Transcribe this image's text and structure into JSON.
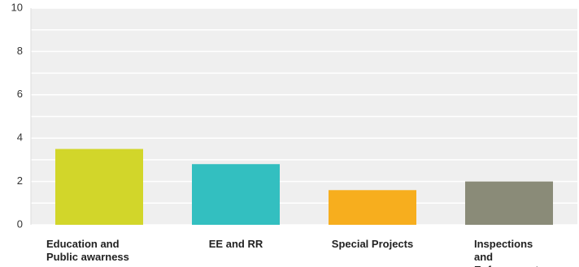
{
  "chart_data": {
    "type": "bar",
    "categories": [
      "Education and Public awarness",
      "EE and RR",
      "Special Projects",
      "Inspections and Enforcement"
    ],
    "values": [
      3.5,
      2.8,
      1.6,
      2.0
    ],
    "colors": [
      "#d2d62a",
      "#33bfc0",
      "#f7ae1e",
      "#8a8b78"
    ],
    "ylim": [
      0,
      10
    ],
    "yticks": [
      0,
      2,
      4,
      6,
      8,
      10
    ],
    "minor_yticks": [
      1,
      3,
      5,
      7,
      9
    ],
    "grid": true
  }
}
